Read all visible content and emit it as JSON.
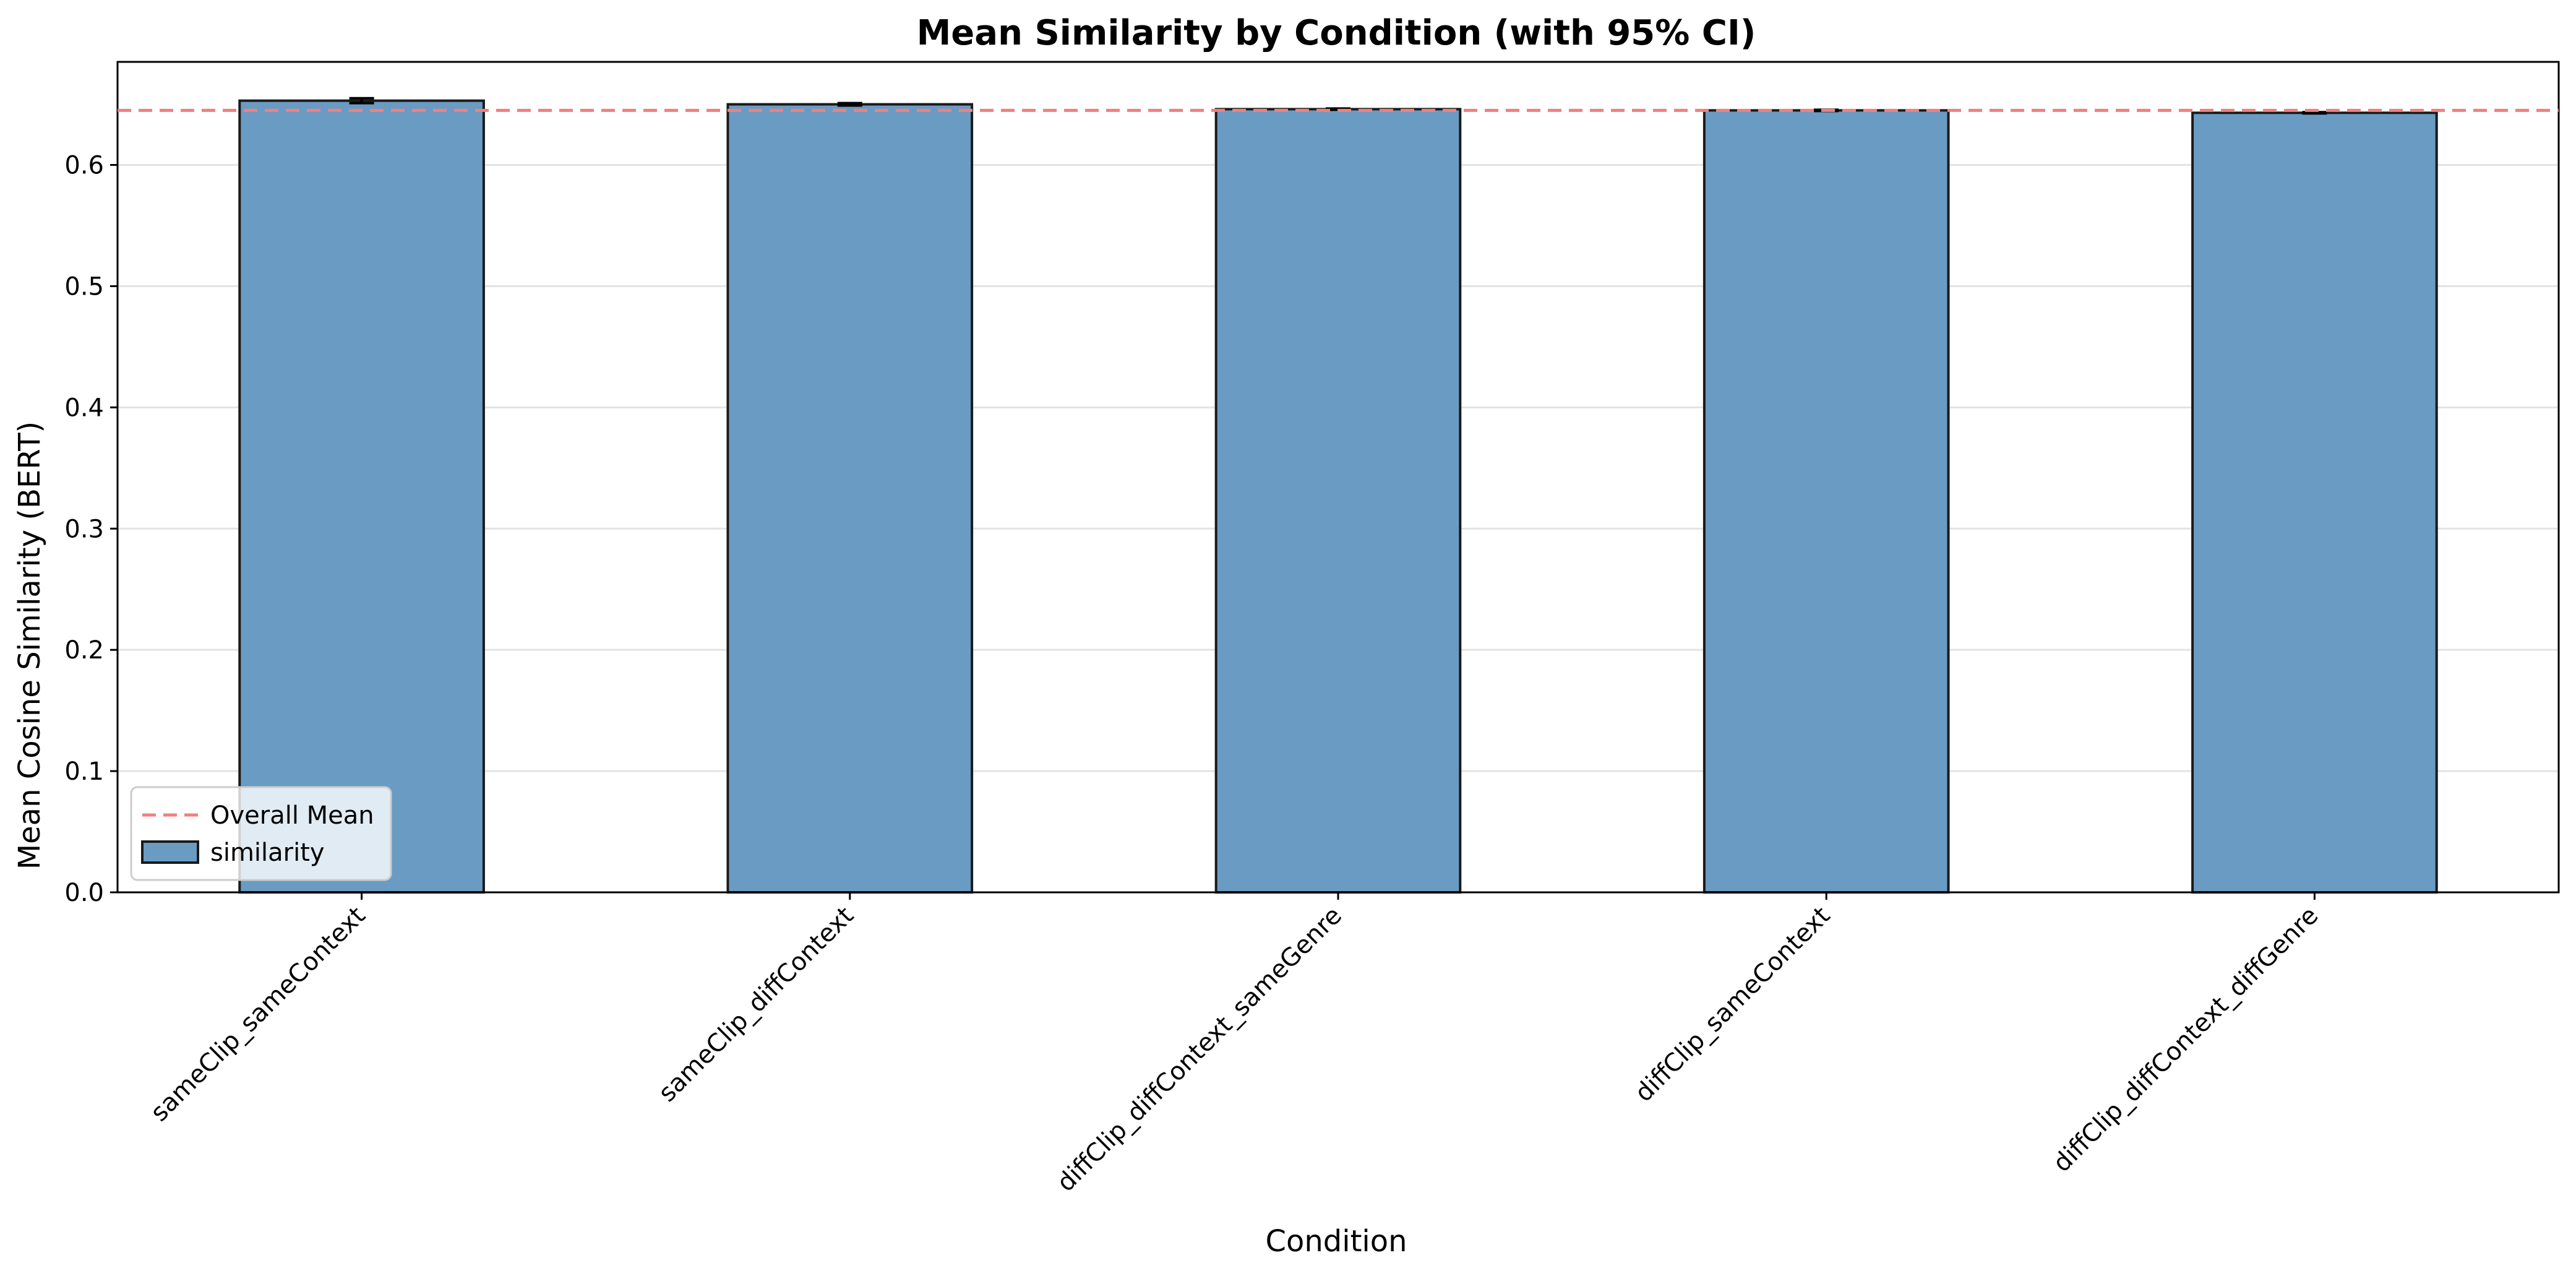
{
  "chart_data": {
    "type": "bar",
    "title": "Mean Similarity by Condition (with 95% CI)",
    "xlabel": "Condition",
    "ylabel": "Mean Cosine Similarity (BERT)",
    "ylim": [
      0,
      0.685
    ],
    "yticks": [
      "0.0",
      "0.1",
      "0.2",
      "0.3",
      "0.4",
      "0.5",
      "0.6"
    ],
    "grid": "y",
    "categories": [
      "sameClip_sameContext",
      "sameClip_diffContext",
      "diffClip_diffContext_sameGenre",
      "diffClip_sameContext",
      "diffClip_diffContext_diffGenre"
    ],
    "series": [
      {
        "name": "similarity",
        "values": [
          0.653,
          0.65,
          0.646,
          0.645,
          0.643
        ],
        "ci_lower": [
          0.651,
          0.649,
          0.6455,
          0.6445,
          0.6425
        ],
        "ci_upper": [
          0.655,
          0.651,
          0.6465,
          0.6455,
          0.6435
        ],
        "color": "#6a9bc3"
      }
    ],
    "reference_line": {
      "name": "Overall Mean",
      "value": 0.645,
      "color": "#f08080",
      "style": "dashed"
    },
    "legend": {
      "placement": "lower-left",
      "entries": [
        "Overall Mean",
        "similarity"
      ]
    }
  }
}
